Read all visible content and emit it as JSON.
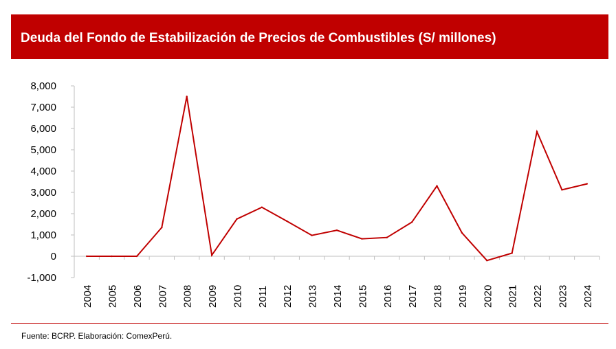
{
  "header": {
    "title": "Deuda del Fondo de Estabilización de Precios de Combustibles (S/ millones)"
  },
  "footer": {
    "source": "Fuente: BCRP. Elaboración: ComexPerú."
  },
  "colors": {
    "brand": "#c00000",
    "line": "#c00000",
    "axis": "#bfbfbf",
    "text": "#000000"
  },
  "chart_data": {
    "type": "line",
    "title": "Deuda del Fondo de Estabilización de Precios de Combustibles (S/ millones)",
    "xlabel": "",
    "ylabel": "",
    "ylim": [
      -1000,
      8000
    ],
    "yticks": [
      -1000,
      0,
      1000,
      2000,
      3000,
      4000,
      5000,
      6000,
      7000,
      8000
    ],
    "ytick_labels": [
      "-1,000",
      "0",
      "1,000",
      "2,000",
      "3,000",
      "4,000",
      "5,000",
      "6,000",
      "7,000",
      "8,000"
    ],
    "grid": false,
    "legend": "none",
    "categories": [
      "2004",
      "2005",
      "2006",
      "2007",
      "2008",
      "2009",
      "2010",
      "2011",
      "2012",
      "2013",
      "2014",
      "2015",
      "2016",
      "2017",
      "2018",
      "2019",
      "2020",
      "2021",
      "2022",
      "2023",
      "2024"
    ],
    "series": [
      {
        "values": [
          0,
          0,
          0,
          1350,
          7500,
          50,
          1750,
          2300,
          1650,
          980,
          1220,
          820,
          880,
          1600,
          3300,
          1100,
          -200,
          150,
          5850,
          3120,
          3400
        ]
      }
    ]
  }
}
